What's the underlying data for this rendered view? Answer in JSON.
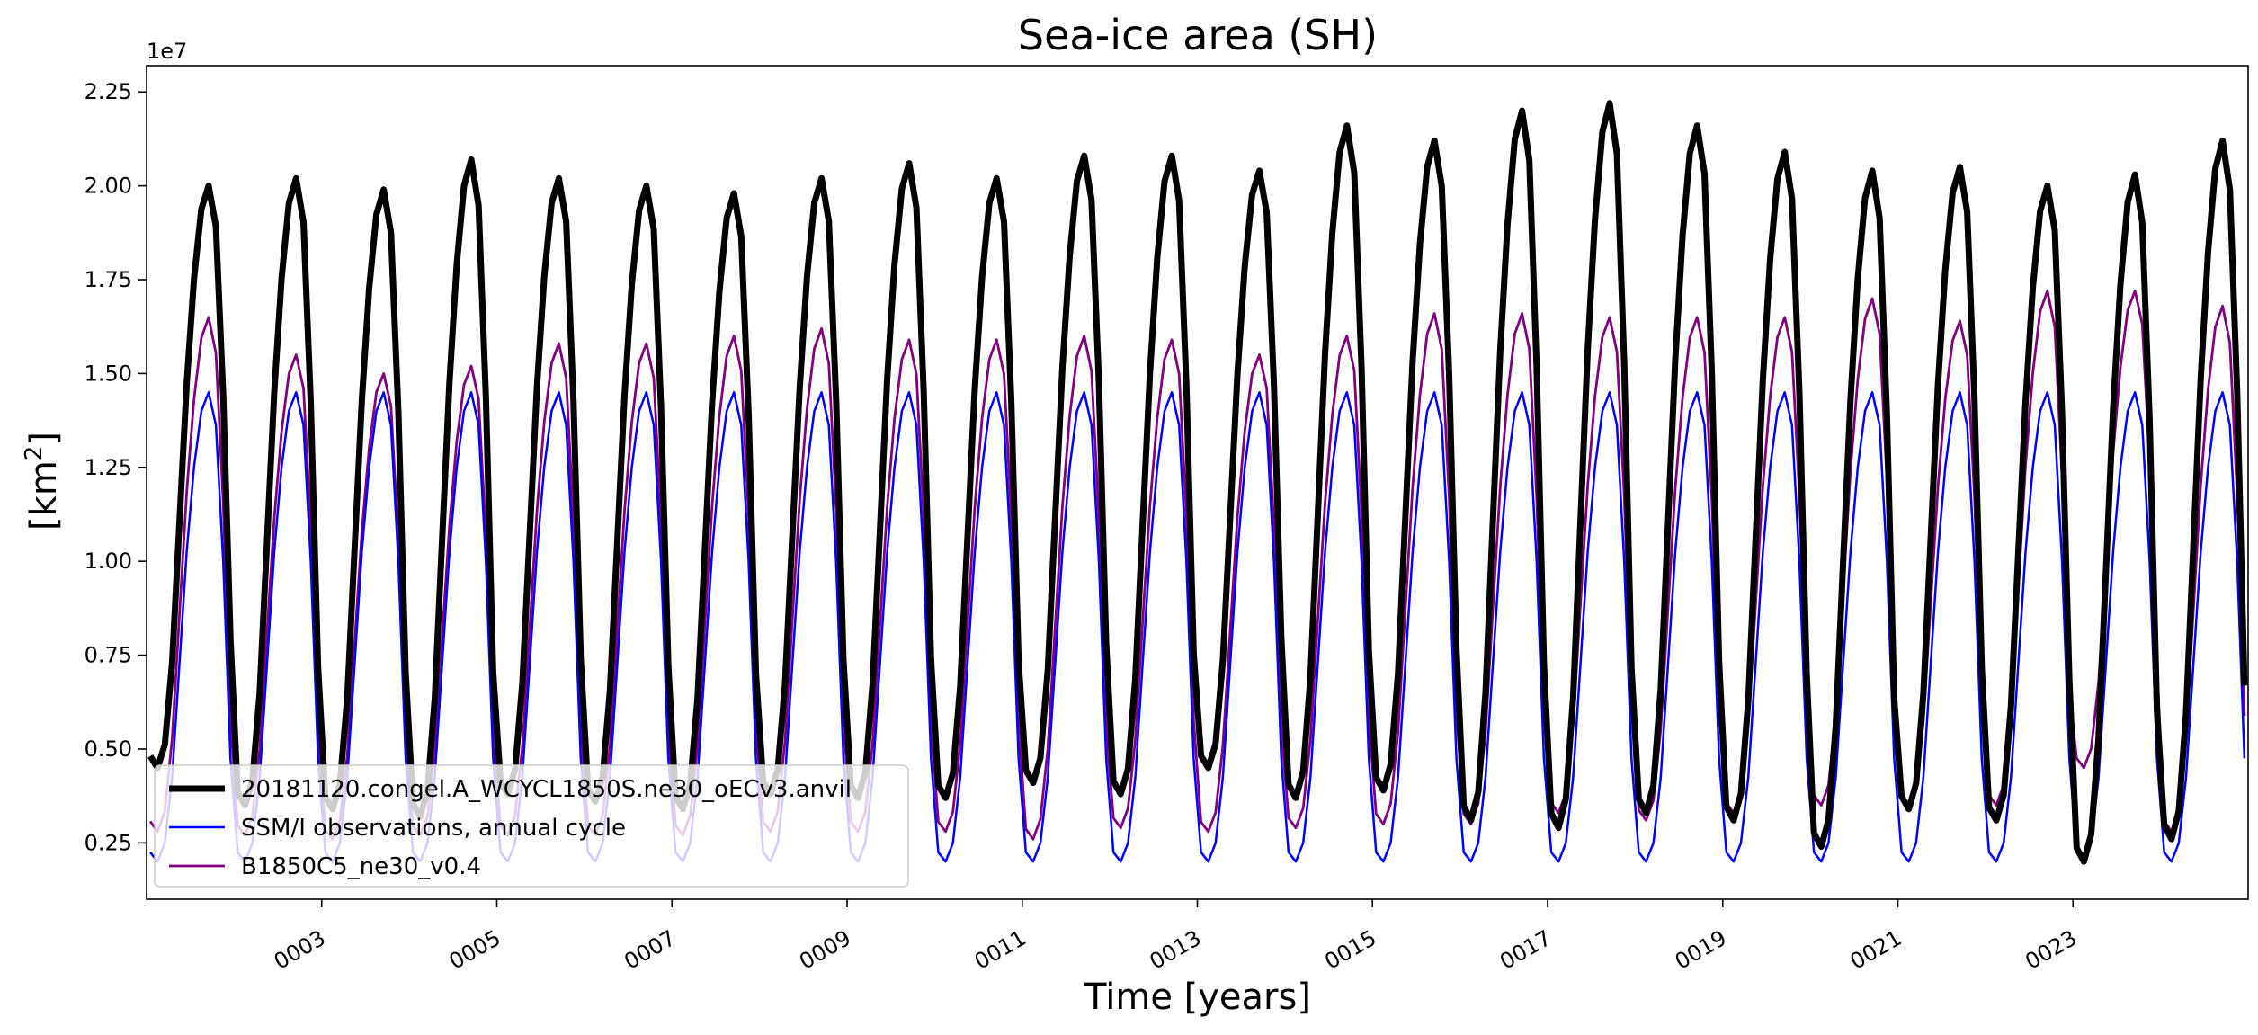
{
  "chart_data": {
    "type": "line",
    "title": "Sea-ice area (SH)",
    "xlabel": "Time [years]",
    "ylabel": "[km",
    "ylabel_superscript": "2",
    "ylabel_close": "]",
    "y_multiplier": "1e7",
    "xlim": [
      1,
      25
    ],
    "ylim": [
      0.1,
      2.32
    ],
    "xtick_values": [
      3,
      5,
      7,
      9,
      11,
      13,
      15,
      17,
      19,
      21,
      23
    ],
    "xtick_labels": [
      "0003",
      "0005",
      "0007",
      "0009",
      "0011",
      "0013",
      "0015",
      "0017",
      "0019",
      "0021",
      "0023"
    ],
    "ytick_values": [
      0.25,
      0.5,
      0.75,
      1.0,
      1.25,
      1.5,
      1.75,
      2.0,
      2.25
    ],
    "ytick_labels": [
      "0.25",
      "0.50",
      "0.75",
      "1.00",
      "1.25",
      "1.50",
      "1.75",
      "2.00",
      "2.25"
    ],
    "grid": false,
    "legend_position": "lower-left",
    "series": [
      {
        "name": "20181120.congel.A_WCYCL1850S.ne30_oECv3.anvil",
        "color": "#000000",
        "max_per_year": [
          2.0,
          2.02,
          1.99,
          2.07,
          2.02,
          2.0,
          1.98,
          2.02,
          2.06,
          2.02,
          2.08,
          2.08,
          2.04,
          2.16,
          2.12,
          2.2,
          2.22,
          2.16,
          2.09,
          2.04,
          2.05,
          2.0,
          2.03,
          2.12
        ],
        "min_per_year": [
          0.45,
          0.35,
          0.34,
          0.32,
          0.38,
          0.36,
          0.34,
          0.38,
          0.37,
          0.37,
          0.41,
          0.38,
          0.45,
          0.37,
          0.39,
          0.31,
          0.29,
          0.33,
          0.31,
          0.24,
          0.34,
          0.31,
          0.2,
          0.26
        ]
      },
      {
        "name": "SSM/I observations, annual cycle",
        "color": "#0000ff",
        "max_per_year": [
          1.45,
          1.45,
          1.45,
          1.45,
          1.45,
          1.45,
          1.45,
          1.45,
          1.45,
          1.45,
          1.45,
          1.45,
          1.45,
          1.45,
          1.45,
          1.45,
          1.45,
          1.45,
          1.45,
          1.45,
          1.45,
          1.45,
          1.45,
          1.45
        ],
        "min_per_year": [
          0.2,
          0.2,
          0.2,
          0.2,
          0.2,
          0.2,
          0.2,
          0.2,
          0.2,
          0.2,
          0.2,
          0.2,
          0.2,
          0.2,
          0.2,
          0.2,
          0.2,
          0.2,
          0.2,
          0.2,
          0.2,
          0.2,
          0.2,
          0.2
        ]
      },
      {
        "name": "B1850C5_ne30_v0.4",
        "color": "#800080",
        "max_per_year": [
          1.65,
          1.55,
          1.5,
          1.52,
          1.58,
          1.58,
          1.6,
          1.62,
          1.59,
          1.59,
          1.6,
          1.59,
          1.55,
          1.6,
          1.66,
          1.66,
          1.65,
          1.65,
          1.65,
          1.7,
          1.64,
          1.72,
          1.72,
          1.68
        ],
        "min_per_year": [
          0.28,
          0.27,
          0.26,
          0.27,
          0.27,
          0.27,
          0.27,
          0.28,
          0.28,
          0.28,
          0.26,
          0.29,
          0.28,
          0.29,
          0.3,
          0.3,
          0.33,
          0.31,
          0.33,
          0.35,
          0.34,
          0.35,
          0.45,
          0.28
        ]
      }
    ]
  }
}
